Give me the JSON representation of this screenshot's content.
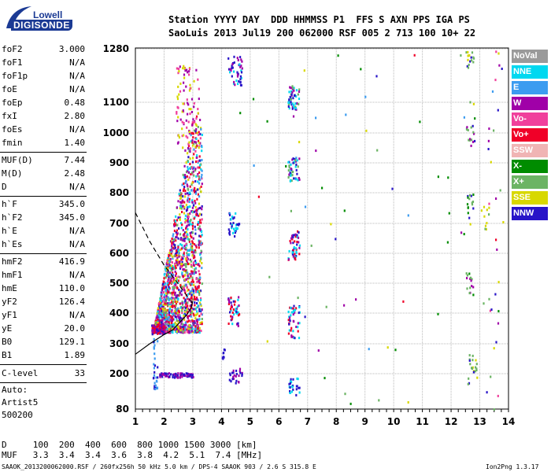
{
  "logo": {
    "line1": "Lowell",
    "line2": "DIGISONDE"
  },
  "header": {
    "line1": "Station YYYY DAY  DDD HHMMSS P1  FFS S AXN PPS IGA PS",
    "line2": "SaoLuis 2013 Jul19 200 062000 RSF 005 2 713 100 10+ 22"
  },
  "params_a": [
    {
      "name": "foF2",
      "value": "3.000"
    },
    {
      "name": "foF1",
      "value": "N/A"
    },
    {
      "name": "foF1p",
      "value": "N/A"
    },
    {
      "name": "foE",
      "value": "N/A"
    },
    {
      "name": "foEp",
      "value": "0.48"
    },
    {
      "name": "fxI",
      "value": "2.80"
    },
    {
      "name": "foEs",
      "value": "N/A"
    },
    {
      "name": "fmin",
      "value": "1.40"
    }
  ],
  "params_b": [
    {
      "name": "MUF(D)",
      "value": "7.44"
    },
    {
      "name": "M(D)",
      "value": "2.48"
    },
    {
      "name": "D",
      "value": "N/A"
    }
  ],
  "params_c": [
    {
      "name": "h`F",
      "value": "345.0"
    },
    {
      "name": "h`F2",
      "value": "345.0"
    },
    {
      "name": "h`E",
      "value": "N/A"
    },
    {
      "name": "h`Es",
      "value": "N/A"
    }
  ],
  "params_d": [
    {
      "name": "hmF2",
      "value": "416.9"
    },
    {
      "name": "hmF1",
      "value": "N/A"
    },
    {
      "name": "hmE",
      "value": "110.0"
    },
    {
      "name": "yF2",
      "value": "126.4"
    },
    {
      "name": "yF1",
      "value": "N/A"
    },
    {
      "name": "yE",
      "value": "20.0"
    },
    {
      "name": "B0",
      "value": "129.1"
    },
    {
      "name": "B1",
      "value": "1.89"
    }
  ],
  "clevel": {
    "name": "C-level",
    "value": "33"
  },
  "auto": {
    "line1": "Auto:",
    "line2": "Artist5",
    "line3": "500200"
  },
  "footer": {
    "d_row": "D     100  200  400  600  800 1000 1500 3000 [km]",
    "muf_row": "MUF   3.3  3.4  3.4  3.6  3.8  4.2  5.1  7.4 [MHz]",
    "file_info": "SAAOK_2013200062000.RSF / 260fx256h 50 kHz 5.0 km / DPS-4 SAAOK 903 / 2.6 S 315.8 E",
    "version": "Ion2Png 1.3.17"
  },
  "legend": [
    {
      "label": "NoVal",
      "color": "#9a9a9a"
    },
    {
      "label": "NNE",
      "color": "#00d8f0"
    },
    {
      "label": "E",
      "color": "#3c9cf0"
    },
    {
      "label": "W",
      "color": "#a000a8"
    },
    {
      "label": "Vo-",
      "color": "#f0409c"
    },
    {
      "label": "Vo+",
      "color": "#f00028"
    },
    {
      "label": "SSW",
      "color": "#f0b4b4"
    },
    {
      "label": "X-",
      "color": "#008c00"
    },
    {
      "label": "X+",
      "color": "#6cb464"
    },
    {
      "label": "SSE",
      "color": "#d8d800"
    },
    {
      "label": "NNW",
      "color": "#2814c8"
    }
  ],
  "chart_data": {
    "type": "scatter",
    "title": "",
    "xlabel": "",
    "ylabel": "",
    "xlim": [
      1,
      14
    ],
    "ylim": [
      80,
      1280
    ],
    "xticks": [
      "1",
      "2",
      "3",
      "4",
      "5",
      "6",
      "7",
      "8",
      "9",
      "10",
      "11",
      "12",
      "13",
      "14"
    ],
    "yticks": [
      "80",
      "200",
      "300",
      "400",
      "500",
      "600",
      "700",
      "800",
      "900",
      "1000",
      "1100",
      "1280"
    ],
    "grid": true,
    "curves": [
      {
        "name": "profile-solid",
        "points": [
          [
            1,
            265
          ],
          [
            1.5,
            300
          ],
          [
            2,
            330
          ],
          [
            2.3,
            345
          ],
          [
            2.6,
            375
          ],
          [
            2.8,
            395
          ],
          [
            2.95,
            420
          ],
          [
            3.0,
            440
          ]
        ]
      },
      {
        "name": "profile-dashed",
        "points": [
          [
            1,
            735
          ],
          [
            1.5,
            640
          ],
          [
            2,
            560
          ],
          [
            2.4,
            510
          ],
          [
            2.7,
            470
          ],
          [
            2.9,
            445
          ],
          [
            3.0,
            430
          ]
        ]
      }
    ],
    "clusters": [
      {
        "x": [
          1.6,
          3.3
        ],
        "y": [
          340,
          1060
        ],
        "n": 1700,
        "colors": [
          "#f00028",
          "#f00028",
          "#a000a8",
          "#a000a8",
          "#f0409c",
          "#d8d800",
          "#2814c8",
          "#3c9cf0",
          "#00d8f0",
          "#6cb464"
        ]
      },
      {
        "x": [
          1.55,
          2.0
        ],
        "y": [
          335,
          365
        ],
        "n": 120,
        "colors": [
          "#f00028",
          "#2814c8",
          "#a000a8"
        ]
      },
      {
        "x": [
          2.4,
          3.2
        ],
        "y": [
          940,
          1230
        ],
        "n": 100,
        "colors": [
          "#d8d800",
          "#f0409c",
          "#a000a8"
        ]
      },
      {
        "x": [
          1.8,
          3.0
        ],
        "y": [
          190,
          205
        ],
        "n": 70,
        "colors": [
          "#2814c8",
          "#a000a8"
        ]
      },
      {
        "x": [
          1.6,
          1.75
        ],
        "y": [
          150,
          320
        ],
        "n": 30,
        "colors": [
          "#2814c8",
          "#3c9cf0"
        ]
      },
      {
        "x": [
          4.2,
          4.7
        ],
        "y": [
          1160,
          1260
        ],
        "n": 45,
        "colors": [
          "#2814c8",
          "#00d8f0",
          "#a000a8"
        ]
      },
      {
        "x": [
          4.2,
          4.6
        ],
        "y": [
          660,
          740
        ],
        "n": 35,
        "colors": [
          "#2814c8",
          "#00d8f0"
        ]
      },
      {
        "x": [
          4.2,
          4.6
        ],
        "y": [
          360,
          460
        ],
        "n": 45,
        "colors": [
          "#2814c8",
          "#00d8f0",
          "#a000a8",
          "#f00028"
        ]
      },
      {
        "x": [
          4.2,
          4.7
        ],
        "y": [
          170,
          220
        ],
        "n": 25,
        "colors": [
          "#2814c8",
          "#a000a8"
        ]
      },
      {
        "x": [
          4.0,
          4.1
        ],
        "y": [
          250,
          300
        ],
        "n": 8,
        "colors": [
          "#2814c8"
        ]
      },
      {
        "x": [
          6.3,
          6.7
        ],
        "y": [
          1080,
          1160
        ],
        "n": 50,
        "colors": [
          "#2814c8",
          "#00d8f0",
          "#a000a8",
          "#6cb464"
        ]
      },
      {
        "x": [
          6.3,
          6.7
        ],
        "y": [
          840,
          920
        ],
        "n": 50,
        "colors": [
          "#2814c8",
          "#00d8f0",
          "#6cb464",
          "#a000a8"
        ]
      },
      {
        "x": [
          6.3,
          6.7
        ],
        "y": [
          580,
          680
        ],
        "n": 50,
        "colors": [
          "#2814c8",
          "#00d8f0",
          "#a000a8",
          "#f00028"
        ]
      },
      {
        "x": [
          6.3,
          6.7
        ],
        "y": [
          320,
          430
        ],
        "n": 45,
        "colors": [
          "#2814c8",
          "#00d8f0",
          "#f00028",
          "#a000a8"
        ]
      },
      {
        "x": [
          6.3,
          6.7
        ],
        "y": [
          130,
          190
        ],
        "n": 25,
        "colors": [
          "#2814c8",
          "#00d8f0"
        ]
      },
      {
        "x": [
          12.5,
          12.8
        ],
        "y": [
          1220,
          1280
        ],
        "n": 15,
        "colors": [
          "#2814c8",
          "#6cb464",
          "#d8d800"
        ]
      },
      {
        "x": [
          12.5,
          12.8
        ],
        "y": [
          960,
          1030
        ],
        "n": 15,
        "colors": [
          "#2814c8",
          "#a000a8",
          "#6cb464"
        ]
      },
      {
        "x": [
          12.5,
          12.8
        ],
        "y": [
          720,
          800
        ],
        "n": 15,
        "colors": [
          "#008c00",
          "#6cb464",
          "#2814c8"
        ]
      },
      {
        "x": [
          12.5,
          12.8
        ],
        "y": [
          460,
          540
        ],
        "n": 15,
        "colors": [
          "#008c00",
          "#6cb464",
          "#a000a8"
        ]
      },
      {
        "x": [
          12.5,
          13.0
        ],
        "y": [
          170,
          270
        ],
        "n": 20,
        "colors": [
          "#d8d800",
          "#6cb464",
          "#2814c8"
        ]
      },
      {
        "x": [
          13.0,
          13.3
        ],
        "y": [
          680,
          760
        ],
        "n": 10,
        "colors": [
          "#6cb464",
          "#d8d800"
        ]
      },
      {
        "x": [
          13.2,
          13.8
        ],
        "y": [
          80,
          1280
        ],
        "n": 25,
        "colors": [
          "#d8d800",
          "#a000a8",
          "#f0409c",
          "#6cb464",
          "#2814c8"
        ]
      },
      {
        "x": [
          4.6,
          13.8
        ],
        "y": [
          80,
          1280
        ],
        "n": 70,
        "colors": [
          "#2814c8",
          "#a000a8",
          "#6cb464",
          "#f00028",
          "#d8d800",
          "#008c00",
          "#3c9cf0"
        ]
      }
    ]
  }
}
